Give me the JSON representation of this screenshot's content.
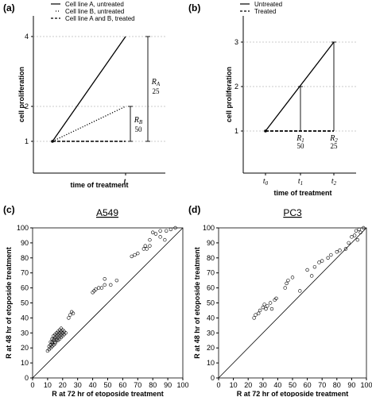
{
  "panels": {
    "a": {
      "label": "(a)"
    },
    "b": {
      "label": "(b)"
    },
    "c": {
      "label": "(c)"
    },
    "d": {
      "label": "(d)"
    }
  },
  "chart_data": [
    {
      "type": "line",
      "panel": "a",
      "xlabel": "time of treatment",
      "ylabel": "cell proliferation",
      "x_tick_labels": [
        "t"
      ],
      "y_ticks": [
        1,
        2,
        4
      ],
      "legend": {
        "placement": "top",
        "entries": [
          {
            "name": "Cell line A, untreated",
            "style": "solid"
          },
          {
            "name": "Cell line B, untreated",
            "style": "dotted"
          },
          {
            "name": "Cell line A and B, treated",
            "style": "dashed"
          }
        ]
      },
      "series": [
        {
          "name": "Cell line A, untreated",
          "points": [
            [
              0,
              1
            ],
            [
              1,
              4
            ]
          ]
        },
        {
          "name": "Cell line B, untreated",
          "points": [
            [
              0,
              1
            ],
            [
              1,
              2
            ]
          ]
        },
        {
          "name": "Cell line A and B, treated",
          "points": [
            [
              0,
              1
            ],
            [
              1,
              1
            ]
          ]
        }
      ],
      "annotations": [
        {
          "label": "R_A",
          "subscript": "A",
          "letter": "R",
          "value": "25",
          "range": [
            1,
            4
          ]
        },
        {
          "label": "R_B",
          "subscript": "B",
          "letter": "R",
          "value": "50",
          "range": [
            1,
            2
          ]
        }
      ]
    },
    {
      "type": "line",
      "panel": "b",
      "xlabel": "time of treatment",
      "ylabel": "cell proliferation",
      "x_tick_labels": [
        {
          "letter": "t",
          "sub": "0"
        },
        {
          "letter": "t",
          "sub": "1"
        },
        {
          "letter": "t",
          "sub": "2"
        }
      ],
      "y_ticks": [
        1,
        2,
        3
      ],
      "legend": {
        "placement": "top",
        "entries": [
          {
            "name": "Untreated",
            "style": "solid"
          },
          {
            "name": "Treated",
            "style": "dashed"
          }
        ]
      },
      "series": [
        {
          "name": "Untreated",
          "points": [
            [
              0,
              1
            ],
            [
              2,
              3
            ]
          ]
        },
        {
          "name": "Treated",
          "points": [
            [
              0,
              1
            ],
            [
              2,
              1
            ]
          ]
        }
      ],
      "annotations": [
        {
          "letter": "R",
          "subscript": "1",
          "value": "50",
          "x": 1,
          "range": [
            1,
            2
          ]
        },
        {
          "letter": "R",
          "subscript": "2",
          "value": "25",
          "x": 2,
          "range": [
            1,
            3
          ]
        }
      ]
    },
    {
      "type": "scatter",
      "panel": "c",
      "title": "A549",
      "xlabel": "R at 72 hr of etoposide treatment",
      "ylabel": "R at 48 hr of etoposide treatment",
      "xlim": [
        0,
        100
      ],
      "ylim": [
        0,
        100
      ],
      "ticks": [
        0,
        10,
        20,
        30,
        40,
        50,
        60,
        70,
        80,
        90,
        100
      ],
      "reference_line": [
        [
          0,
          0
        ],
        [
          100,
          100
        ]
      ],
      "points": [
        [
          10,
          18
        ],
        [
          11,
          19
        ],
        [
          11,
          21
        ],
        [
          12,
          20
        ],
        [
          12,
          22
        ],
        [
          13,
          21
        ],
        [
          13,
          23
        ],
        [
          13,
          24
        ],
        [
          14,
          22
        ],
        [
          14,
          25
        ],
        [
          14,
          26
        ],
        [
          15,
          23
        ],
        [
          15,
          24
        ],
        [
          15,
          27
        ],
        [
          16,
          25
        ],
        [
          16,
          26
        ],
        [
          16,
          28
        ],
        [
          17,
          25
        ],
        [
          17,
          27
        ],
        [
          17,
          29
        ],
        [
          18,
          26
        ],
        [
          18,
          28
        ],
        [
          18,
          30
        ],
        [
          19,
          27
        ],
        [
          19,
          29
        ],
        [
          19,
          31
        ],
        [
          20,
          28
        ],
        [
          20,
          30
        ],
        [
          21,
          29
        ],
        [
          21,
          31
        ],
        [
          22,
          30
        ],
        [
          12,
          24
        ],
        [
          14,
          28
        ],
        [
          16,
          30
        ],
        [
          18,
          32
        ],
        [
          20,
          32
        ],
        [
          13,
          26
        ],
        [
          15,
          29
        ],
        [
          17,
          31
        ],
        [
          19,
          33
        ],
        [
          24,
          40
        ],
        [
          25,
          42
        ],
        [
          26,
          44
        ],
        [
          27,
          43
        ],
        [
          40,
          57
        ],
        [
          41,
          58
        ],
        [
          42,
          59
        ],
        [
          44,
          60
        ],
        [
          46,
          60
        ],
        [
          48,
          62
        ],
        [
          48,
          66
        ],
        [
          52,
          62
        ],
        [
          56,
          65
        ],
        [
          66,
          81
        ],
        [
          68,
          82
        ],
        [
          70,
          83
        ],
        [
          74,
          86
        ],
        [
          75,
          88
        ],
        [
          78,
          88
        ],
        [
          78,
          92
        ],
        [
          80,
          97
        ],
        [
          82,
          96
        ],
        [
          85,
          98
        ],
        [
          85,
          94
        ],
        [
          88,
          92
        ],
        [
          89,
          98
        ],
        [
          92,
          99
        ],
        [
          95,
          100
        ],
        [
          76,
          86
        ]
      ]
    },
    {
      "type": "scatter",
      "panel": "d",
      "title": "PC3",
      "xlabel": "R at 72 hr of etoposide treatment",
      "ylabel": "R at 48 hr of etoposide treatment",
      "xlim": [
        0,
        100
      ],
      "ylim": [
        0,
        100
      ],
      "ticks": [
        0,
        10,
        20,
        30,
        40,
        50,
        60,
        70,
        80,
        90,
        100
      ],
      "reference_line": [
        [
          0,
          0
        ],
        [
          100,
          100
        ]
      ],
      "points": [
        [
          24,
          40
        ],
        [
          25,
          42
        ],
        [
          27,
          43
        ],
        [
          28,
          45
        ],
        [
          30,
          47
        ],
        [
          31,
          49
        ],
        [
          32,
          46
        ],
        [
          33,
          48
        ],
        [
          35,
          50
        ],
        [
          36,
          46
        ],
        [
          38,
          52
        ],
        [
          39,
          53
        ],
        [
          45,
          60
        ],
        [
          46,
          63
        ],
        [
          47,
          65
        ],
        [
          50,
          67
        ],
        [
          55,
          58
        ],
        [
          60,
          72
        ],
        [
          63,
          68
        ],
        [
          65,
          74
        ],
        [
          68,
          77
        ],
        [
          70,
          78
        ],
        [
          74,
          80
        ],
        [
          76,
          82
        ],
        [
          80,
          84
        ],
        [
          82,
          85
        ],
        [
          86,
          86
        ],
        [
          88,
          90
        ],
        [
          90,
          94
        ],
        [
          92,
          95
        ],
        [
          93,
          98
        ],
        [
          94,
          92
        ],
        [
          96,
          97
        ],
        [
          98,
          100
        ],
        [
          95,
          99
        ]
      ]
    }
  ]
}
